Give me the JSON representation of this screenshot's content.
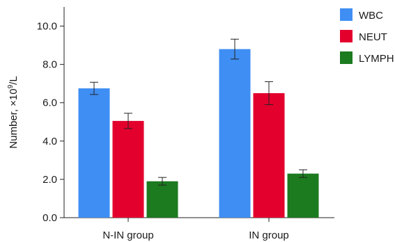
{
  "chart_data": {
    "type": "bar",
    "title": "",
    "xlabel": "",
    "ylabel": "Number, ×10",
    "ylabel_exponent": "9",
    "ylabel_unit": "/L",
    "ylim": [
      0,
      11
    ],
    "yticks": [
      0,
      2,
      4,
      6,
      8,
      10
    ],
    "ytick_labels": [
      "0.0",
      "2.0",
      "4.0",
      "6.0",
      "8.0",
      "10.0"
    ],
    "categories": [
      "N-IN group",
      "IN group"
    ],
    "series": [
      {
        "name": "WBC",
        "color": "#3f8ef3",
        "values": [
          6.75,
          8.8
        ],
        "error": [
          0.32,
          0.52
        ]
      },
      {
        "name": "NEUT",
        "color": "#e3002d",
        "values": [
          5.05,
          6.5
        ],
        "error": [
          0.4,
          0.6
        ]
      },
      {
        "name": "LYMPH",
        "color": "#1c7a1f",
        "values": [
          1.9,
          2.3
        ],
        "error": [
          0.2,
          0.2
        ]
      }
    ],
    "legend_position": "top-right",
    "grid": false
  }
}
